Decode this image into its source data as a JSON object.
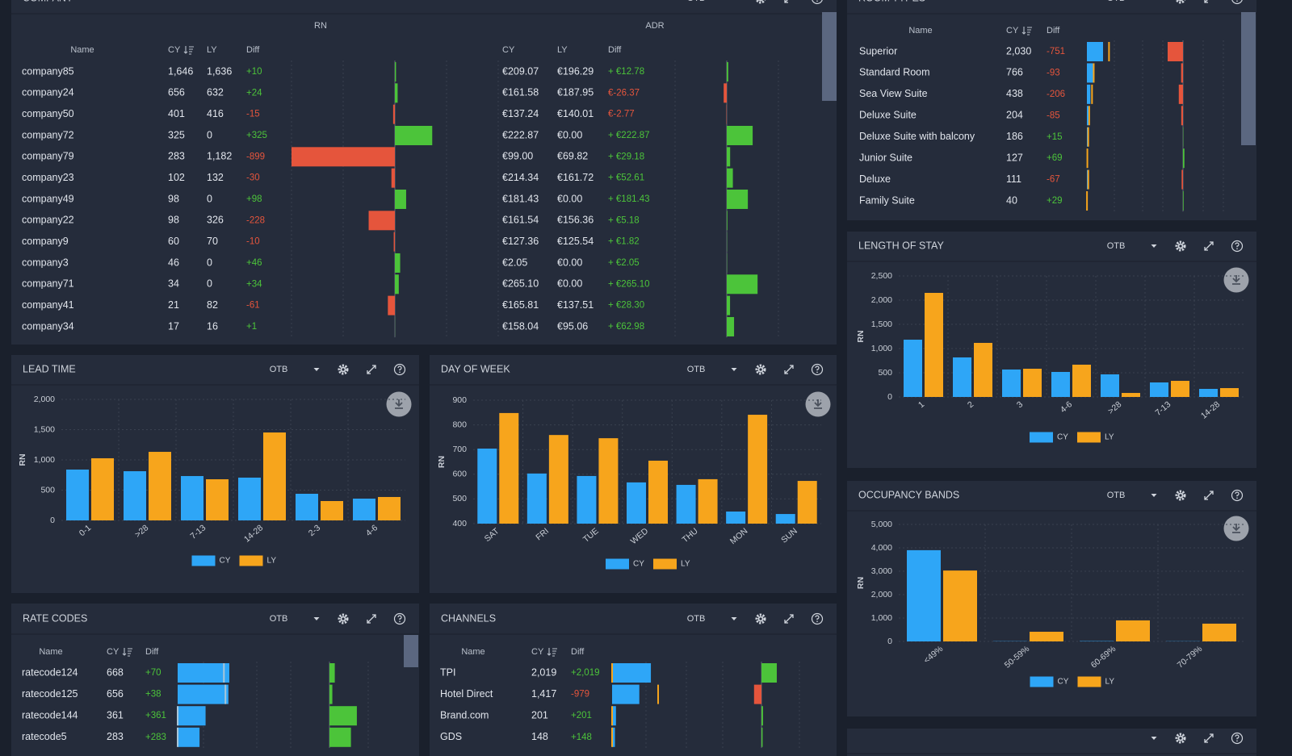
{
  "company": {
    "title": "COMPANY",
    "toolbar_label": "OTB",
    "group_headers": [
      "RN",
      "ADR"
    ],
    "columns": [
      "Name",
      "CY",
      "LY",
      "Diff",
      "CY",
      "LY",
      "Diff"
    ],
    "positive_color": "#4cc43a",
    "negative_color": "#e5553c",
    "rows": [
      {
        "name": "company85",
        "cy": "1,646",
        "ly": "1,636",
        "diff": {
          "value": 10,
          "label": "+10"
        },
        "adr_cy": "€209.07",
        "adr_ly": "€196.29",
        "adr_diff": {
          "value": 12.78,
          "label": "+ €12.78"
        }
      },
      {
        "name": "company24",
        "cy": "656",
        "ly": "632",
        "diff": {
          "value": 24,
          "label": "+24"
        },
        "adr_cy": "€161.58",
        "adr_ly": "€187.95",
        "adr_diff": {
          "value": -26.37,
          "label": "€-26.37"
        }
      },
      {
        "name": "company50",
        "cy": "401",
        "ly": "416",
        "diff": -15,
        "adr_cy": "€137.24",
        "adr_ly": "€140.01",
        "adr_diff": {
          "value": -2.77,
          "label": "€-2.77"
        }
      },
      {
        "name": "company72",
        "cy": "325",
        "ly": "0",
        "diff": {
          "value": 325,
          "label": "+325"
        },
        "adr_cy": "€222.87",
        "adr_ly": "€0.00",
        "adr_diff": {
          "value": 222.87,
          "label": "+ €222.87"
        }
      },
      {
        "name": "company79",
        "cy": "283",
        "ly": "1,182",
        "diff": -899,
        "adr_cy": "€99.00",
        "adr_ly": "€69.82",
        "adr_diff": {
          "value": 29.18,
          "label": "+ €29.18"
        }
      },
      {
        "name": "company23",
        "cy": "102",
        "ly": "132",
        "diff": -30,
        "adr_cy": "€214.34",
        "adr_ly": "€161.72",
        "adr_diff": {
          "value": 52.61,
          "label": "+ €52.61"
        }
      },
      {
        "name": "company49",
        "cy": "98",
        "ly": "0",
        "diff": {
          "value": 98,
          "label": "+98"
        },
        "adr_cy": "€181.43",
        "adr_ly": "€0.00",
        "adr_diff": {
          "value": 181.43,
          "label": "+ €181.43"
        }
      },
      {
        "name": "company22",
        "cy": "98",
        "ly": "326",
        "diff": -228,
        "adr_cy": "€161.54",
        "adr_ly": "€156.36",
        "adr_diff": {
          "value": 5.18,
          "label": "+ €5.18"
        }
      },
      {
        "name": "company9",
        "cy": "60",
        "ly": "70",
        "diff": -10,
        "adr_cy": "€127.36",
        "adr_ly": "€125.54",
        "adr_diff": {
          "value": 1.82,
          "label": "+ €1.82"
        }
      },
      {
        "name": "company3",
        "cy": "46",
        "ly": "0",
        "diff": {
          "value": 46,
          "label": "+46"
        },
        "adr_cy": "€2.05",
        "adr_ly": "€0.00",
        "adr_diff": {
          "value": 2.05,
          "label": "+ €2.05"
        }
      },
      {
        "name": "company71",
        "cy": "34",
        "ly": "0",
        "diff": {
          "value": 34,
          "label": "+34"
        },
        "adr_cy": "€265.10",
        "adr_ly": "€0.00",
        "adr_diff": {
          "value": 265.1,
          "label": "+ €265.10"
        }
      },
      {
        "name": "company41",
        "cy": "21",
        "ly": "82",
        "diff": -61,
        "adr_cy": "€165.81",
        "adr_ly": "€137.51",
        "adr_diff": {
          "value": 28.3,
          "label": "+ €28.30"
        }
      },
      {
        "name": "company34",
        "cy": "17",
        "ly": "16",
        "diff": {
          "value": 1,
          "label": "+1"
        },
        "adr_cy": "€158.04",
        "adr_ly": "€95.06",
        "adr_diff": {
          "value": 62.98,
          "label": "+ €62.98"
        }
      }
    ]
  },
  "room_types": {
    "title": "ROOM TYPES",
    "toolbar_label": "OTB",
    "columns": [
      "Name",
      "CY",
      "Diff"
    ],
    "cy_color": "#2ea6f7",
    "ly_color": "#f7a51c",
    "positive_color": "#4cc43a",
    "negative_color": "#e5553c",
    "rows": [
      {
        "name": "Superior",
        "cy": {
          "value": 2030,
          "label": "2,030"
        },
        "ly": 2781,
        "diff": -751
      },
      {
        "name": "Standard Room",
        "cy": 766,
        "ly": 859,
        "diff": -93
      },
      {
        "name": "Sea View Suite",
        "cy": 438,
        "ly": 644,
        "diff": -206
      },
      {
        "name": "Deluxe Suite",
        "cy": 204,
        "ly": 289,
        "diff": -85
      },
      {
        "name": "Deluxe Suite with balcony",
        "cy": 186,
        "ly": 171,
        "diff": {
          "value": 15,
          "label": "+15"
        }
      },
      {
        "name": "Junior Suite",
        "cy": 127,
        "ly": 58,
        "diff": {
          "value": 69,
          "label": "+69"
        }
      },
      {
        "name": "Deluxe",
        "cy": 111,
        "ly": 178,
        "diff": -67
      },
      {
        "name": "Family Suite",
        "cy": 40,
        "ly": 11,
        "diff": {
          "value": 29,
          "label": "+29"
        }
      }
    ]
  },
  "rate_codes": {
    "title": "RATE CODES",
    "toolbar_label": "OTB",
    "columns": [
      "Name",
      "CY",
      "Diff"
    ],
    "cy_color": "#2ea6f7",
    "ly_color": "#a9c6d8",
    "positive_color": "#4cc43a",
    "negative_color": "#e5553c",
    "rows": [
      {
        "name": "ratecode124",
        "cy": 668,
        "ly": 598,
        "diff": {
          "value": 70,
          "label": "+70"
        }
      },
      {
        "name": "ratecode125",
        "cy": 656,
        "ly": 618,
        "diff": {
          "value": 38,
          "label": "+38"
        }
      },
      {
        "name": "ratecode144",
        "cy": 361,
        "ly": 0,
        "diff": {
          "value": 361,
          "label": "+361"
        }
      },
      {
        "name": "ratecode5",
        "cy": 283,
        "ly": 0,
        "diff": {
          "value": 283,
          "label": "+283"
        }
      }
    ]
  },
  "channels": {
    "title": "CHANNELS",
    "toolbar_label": "OTB",
    "columns": [
      "Name",
      "CY",
      "Diff"
    ],
    "cy_color": "#2ea6f7",
    "ly_color": "#f7a51c",
    "positive_color": "#4cc43a",
    "negative_color": "#e5553c",
    "rows": [
      {
        "name": "TPI",
        "cy": {
          "value": 2019,
          "label": "2,019"
        },
        "ly": 0,
        "diff": {
          "value": 2019,
          "label": "+2,019"
        }
      },
      {
        "name": "Hotel Direct",
        "cy": {
          "value": 1417,
          "label": "1,417"
        },
        "ly": 2396,
        "diff": -979
      },
      {
        "name": "Brand.com",
        "cy": 201,
        "ly": 0,
        "diff": {
          "value": 201,
          "label": "+201"
        }
      },
      {
        "name": "GDS",
        "cy": 148,
        "ly": 0,
        "diff": {
          "value": 148,
          "label": "+148"
        }
      }
    ]
  },
  "chart_data": [
    {
      "type": "bar",
      "title": "LENGTH OF STAY",
      "toolbar_label": "OTB",
      "y_label": "RN",
      "categories": [
        "1",
        "2",
        "3",
        "4-6",
        ">28",
        "7-13",
        "14-28"
      ],
      "series": [
        {
          "name": "CY",
          "color": "#2ea6f7",
          "values": [
            1183,
            817,
            567,
            517,
            467,
            300,
            167
          ]
        },
        {
          "name": "LY",
          "color": "#f7a51c",
          "values": [
            2150,
            1117,
            583,
            667,
            83,
            333,
            183
          ]
        }
      ],
      "ylim": [
        0,
        2500
      ],
      "yticks": [
        0,
        500,
        {
          "value": 1000,
          "label": "1,000"
        },
        {
          "value": 1500,
          "label": "1,500"
        },
        {
          "value": 2000,
          "label": "2,000"
        },
        {
          "value": 2500,
          "label": "2,500"
        }
      ],
      "grid": true
    },
    {
      "type": "bar",
      "title": "LEAD TIME",
      "toolbar_label": "OTB",
      "y_label": "RN",
      "categories": [
        "0-1",
        ">28",
        "7-13",
        "14-28",
        "2-3",
        "4-6"
      ],
      "series": [
        {
          "name": "CY",
          "color": "#2ea6f7",
          "values": [
            840,
            813,
            733,
            707,
            440,
            360
          ]
        },
        {
          "name": "LY",
          "color": "#f7a51c",
          "values": [
            1027,
            1133,
            680,
            1453,
            320,
            387
          ]
        }
      ],
      "ylim": [
        0,
        2000
      ],
      "yticks": [
        0,
        500,
        {
          "value": 1000,
          "label": "1,000"
        },
        {
          "value": 1500,
          "label": "1,500"
        },
        {
          "value": 2000,
          "label": "2,000"
        }
      ],
      "grid": true
    },
    {
      "type": "bar",
      "title": "DAY OF WEEK",
      "toolbar_label": "OTB",
      "y_label": "RN",
      "categories": [
        "SAT",
        "FRI",
        "TUE",
        "WED",
        "THU",
        "MON",
        "SUN"
      ],
      "series": [
        {
          "name": "CY",
          "color": "#2ea6f7",
          "values": [
            704,
            603,
            593,
            567,
            557,
            449,
            439
          ]
        },
        {
          "name": "LY",
          "color": "#f7a51c",
          "values": [
            848,
            759,
            746,
            655,
            580,
            841,
            573
          ]
        }
      ],
      "ylim": [
        400,
        900
      ],
      "yticks": [
        400,
        500,
        600,
        700,
        800,
        900
      ],
      "grid": true
    },
    {
      "type": "bar",
      "title": "OCCUPANCY BANDS",
      "toolbar_label": "OTB",
      "y_label": "RN",
      "categories": [
        "<49%",
        "50-59%",
        "60-69%",
        "70-79%"
      ],
      "series": [
        {
          "name": "CY",
          "color": "#2ea6f7",
          "values": [
            3900,
            10,
            15,
            8
          ]
        },
        {
          "name": "LY",
          "color": "#f7a51c",
          "values": [
            3030,
            414,
            900,
            760
          ]
        }
      ],
      "ylim": [
        0,
        5000
      ],
      "yticks": [
        0,
        {
          "value": 1000,
          "label": "1,000"
        },
        {
          "value": 2000,
          "label": "2,000"
        },
        {
          "value": 3000,
          "label": "3,000"
        },
        {
          "value": 4000,
          "label": "4,000"
        },
        {
          "value": 5000,
          "label": "5,000"
        }
      ],
      "grid": true
    }
  ]
}
